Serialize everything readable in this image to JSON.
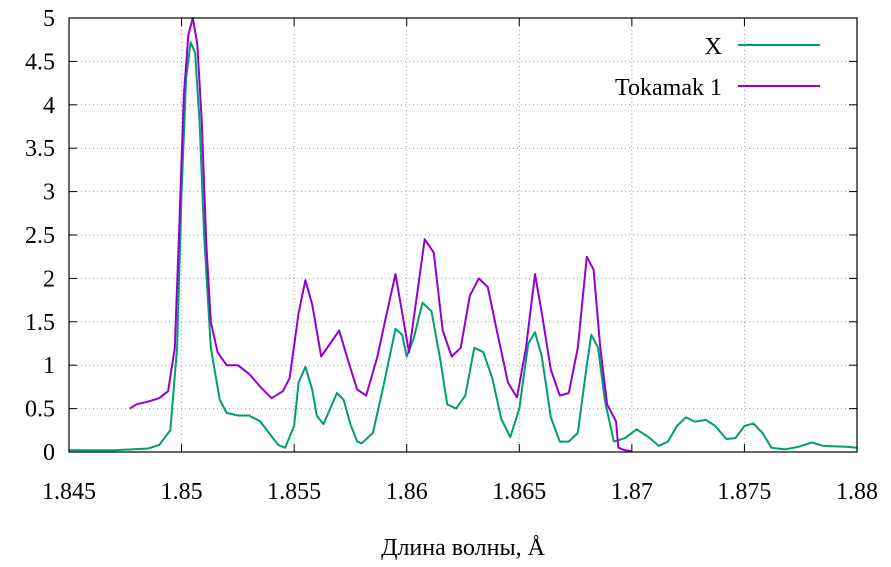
{
  "chart_data": {
    "type": "line",
    "title": "",
    "xlabel": "Длина волны, Å",
    "ylabel": "",
    "xlim": [
      1.845,
      1.88
    ],
    "ylim": [
      0,
      5
    ],
    "x_ticks": [
      "1.845",
      "1.85",
      "1.855",
      "1.86",
      "1.865",
      "1.87",
      "1.875",
      "1.88"
    ],
    "y_ticks": [
      "0",
      "0.5",
      "1",
      "1.5",
      "2",
      "2.5",
      "3",
      "3.5",
      "4",
      "4.5",
      "5"
    ],
    "grid": true,
    "legend_position": "top-right",
    "series": [
      {
        "name": "X",
        "color": "#009e73",
        "points": [
          [
            1.845,
            0.02
          ],
          [
            1.847,
            0.02
          ],
          [
            1.8485,
            0.04
          ],
          [
            1.849,
            0.08
          ],
          [
            1.8495,
            0.25
          ],
          [
            1.8498,
            1.2
          ],
          [
            1.85,
            3.0
          ],
          [
            1.8502,
            4.3
          ],
          [
            1.8504,
            4.72
          ],
          [
            1.8506,
            4.6
          ],
          [
            1.8508,
            3.8
          ],
          [
            1.851,
            2.5
          ],
          [
            1.8513,
            1.2
          ],
          [
            1.8517,
            0.6
          ],
          [
            1.852,
            0.45
          ],
          [
            1.8525,
            0.42
          ],
          [
            1.853,
            0.42
          ],
          [
            1.8535,
            0.35
          ],
          [
            1.854,
            0.18
          ],
          [
            1.8543,
            0.08
          ],
          [
            1.8546,
            0.05
          ],
          [
            1.855,
            0.3
          ],
          [
            1.8552,
            0.8
          ],
          [
            1.8555,
            0.98
          ],
          [
            1.8558,
            0.72
          ],
          [
            1.856,
            0.42
          ],
          [
            1.8563,
            0.32
          ],
          [
            1.8566,
            0.5
          ],
          [
            1.8569,
            0.68
          ],
          [
            1.8572,
            0.6
          ],
          [
            1.8575,
            0.32
          ],
          [
            1.8578,
            0.12
          ],
          [
            1.858,
            0.1
          ],
          [
            1.8585,
            0.22
          ],
          [
            1.859,
            0.8
          ],
          [
            1.8595,
            1.42
          ],
          [
            1.8598,
            1.35
          ],
          [
            1.86,
            1.1
          ],
          [
            1.8603,
            1.3
          ],
          [
            1.8607,
            1.72
          ],
          [
            1.8611,
            1.62
          ],
          [
            1.8615,
            1.05
          ],
          [
            1.8618,
            0.55
          ],
          [
            1.8622,
            0.5
          ],
          [
            1.8626,
            0.65
          ],
          [
            1.863,
            1.2
          ],
          [
            1.8634,
            1.15
          ],
          [
            1.8638,
            0.85
          ],
          [
            1.8642,
            0.38
          ],
          [
            1.8646,
            0.17
          ],
          [
            1.865,
            0.5
          ],
          [
            1.8654,
            1.25
          ],
          [
            1.8657,
            1.38
          ],
          [
            1.866,
            1.1
          ],
          [
            1.8664,
            0.4
          ],
          [
            1.8668,
            0.12
          ],
          [
            1.8672,
            0.12
          ],
          [
            1.8676,
            0.22
          ],
          [
            1.868,
            1.0
          ],
          [
            1.8682,
            1.35
          ],
          [
            1.8685,
            1.2
          ],
          [
            1.8688,
            0.6
          ],
          [
            1.8692,
            0.12
          ],
          [
            1.8697,
            0.16
          ],
          [
            1.8702,
            0.26
          ],
          [
            1.8707,
            0.18
          ],
          [
            1.8712,
            0.07
          ],
          [
            1.8716,
            0.12
          ],
          [
            1.872,
            0.3
          ],
          [
            1.8724,
            0.4
          ],
          [
            1.8728,
            0.35
          ],
          [
            1.8733,
            0.37
          ],
          [
            1.8737,
            0.3
          ],
          [
            1.8742,
            0.15
          ],
          [
            1.8746,
            0.16
          ],
          [
            1.875,
            0.3
          ],
          [
            1.8754,
            0.33
          ],
          [
            1.8758,
            0.22
          ],
          [
            1.8762,
            0.05
          ],
          [
            1.8768,
            0.03
          ],
          [
            1.8774,
            0.06
          ],
          [
            1.878,
            0.11
          ],
          [
            1.8785,
            0.07
          ],
          [
            1.8795,
            0.06
          ],
          [
            1.88,
            0.05
          ]
        ]
      },
      {
        "name": "Tokamak 1",
        "color": "#9400d3",
        "points": [
          [
            1.8477,
            0.5
          ],
          [
            1.848,
            0.55
          ],
          [
            1.8485,
            0.58
          ],
          [
            1.849,
            0.62
          ],
          [
            1.8494,
            0.7
          ],
          [
            1.8497,
            1.2
          ],
          [
            1.8499,
            2.6
          ],
          [
            1.8501,
            4.1
          ],
          [
            1.8503,
            4.8
          ],
          [
            1.8505,
            5.0
          ],
          [
            1.8507,
            4.7
          ],
          [
            1.8509,
            3.8
          ],
          [
            1.8511,
            2.4
          ],
          [
            1.8513,
            1.5
          ],
          [
            1.8516,
            1.15
          ],
          [
            1.852,
            1.0
          ],
          [
            1.8525,
            1.0
          ],
          [
            1.853,
            0.9
          ],
          [
            1.8535,
            0.75
          ],
          [
            1.854,
            0.62
          ],
          [
            1.8545,
            0.7
          ],
          [
            1.8548,
            0.85
          ],
          [
            1.8552,
            1.6
          ],
          [
            1.8555,
            1.98
          ],
          [
            1.8558,
            1.7
          ],
          [
            1.8562,
            1.1
          ],
          [
            1.8566,
            1.25
          ],
          [
            1.857,
            1.4
          ],
          [
            1.8574,
            1.05
          ],
          [
            1.8578,
            0.72
          ],
          [
            1.8582,
            0.65
          ],
          [
            1.8587,
            1.1
          ],
          [
            1.8592,
            1.7
          ],
          [
            1.8595,
            2.05
          ],
          [
            1.8598,
            1.6
          ],
          [
            1.8601,
            1.15
          ],
          [
            1.8604,
            1.7
          ],
          [
            1.8608,
            2.45
          ],
          [
            1.8612,
            2.3
          ],
          [
            1.8616,
            1.4
          ],
          [
            1.862,
            1.1
          ],
          [
            1.8624,
            1.2
          ],
          [
            1.8628,
            1.8
          ],
          [
            1.8632,
            2.0
          ],
          [
            1.8636,
            1.9
          ],
          [
            1.864,
            1.4
          ],
          [
            1.8645,
            0.8
          ],
          [
            1.8649,
            0.63
          ],
          [
            1.8653,
            1.2
          ],
          [
            1.8657,
            2.05
          ],
          [
            1.866,
            1.6
          ],
          [
            1.8664,
            0.95
          ],
          [
            1.8668,
            0.65
          ],
          [
            1.8672,
            0.68
          ],
          [
            1.8676,
            1.2
          ],
          [
            1.868,
            2.25
          ],
          [
            1.8683,
            2.1
          ],
          [
            1.8686,
            1.2
          ],
          [
            1.8689,
            0.55
          ],
          [
            1.8693,
            0.35
          ],
          [
            1.8694,
            0.05
          ],
          [
            1.8697,
            0.02
          ],
          [
            1.87,
            0.01
          ]
        ]
      }
    ]
  }
}
